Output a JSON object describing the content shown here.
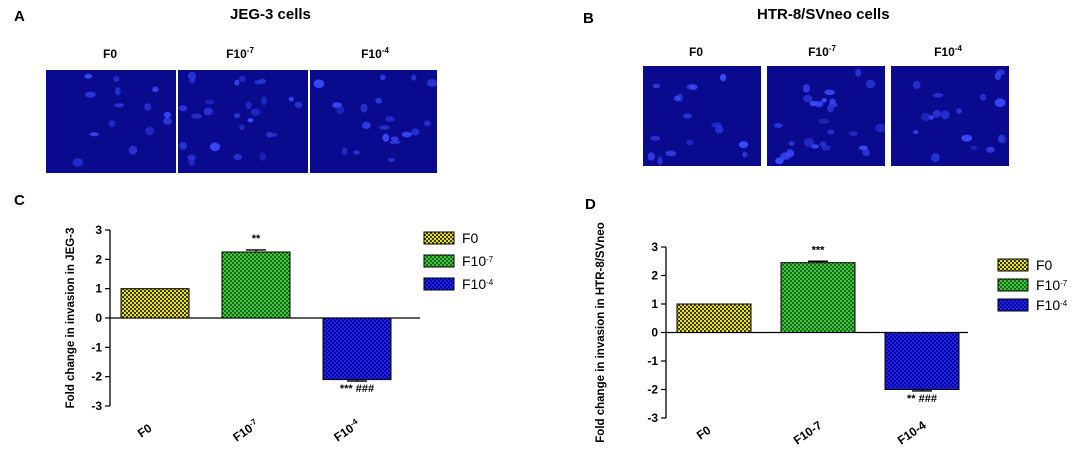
{
  "panels": {
    "A": {
      "letter": "A",
      "title": "JEG-3 cells",
      "columns": [
        {
          "base": "F0",
          "exp": ""
        },
        {
          "base": "F10",
          "exp": "-7"
        },
        {
          "base": "F10",
          "exp": "-4"
        }
      ],
      "image_color": "#0a0a8e"
    },
    "B": {
      "letter": "B",
      "title": "HTR-8/SVneo cells",
      "columns": [
        {
          "base": "F0",
          "exp": ""
        },
        {
          "base": "F10",
          "exp": "-7"
        },
        {
          "base": "F10",
          "exp": "-4"
        }
      ],
      "image_color": "#0a0a8e"
    },
    "C": {
      "letter": "C"
    },
    "D": {
      "letter": "D"
    }
  },
  "chart_data": [
    {
      "type": "bar",
      "panel": "C",
      "ylabel": "Fold change in invasion in JEG-3",
      "xlabel": "",
      "categories": [
        {
          "base": "F0",
          "exp": ""
        },
        {
          "base": "F10",
          "exp": "-7"
        },
        {
          "base": "F10",
          "exp": "-4"
        }
      ],
      "values": [
        1.0,
        2.25,
        -2.1
      ],
      "errors": [
        0.0,
        0.07,
        0.05
      ],
      "significance": [
        "",
        "**",
        "*** ###"
      ],
      "ylim": [
        -3,
        3
      ],
      "yticks": [
        -3,
        -2,
        -1,
        0,
        1,
        2,
        3
      ],
      "colors": [
        "#e8e030",
        "#3ec43e",
        "#1e1ef0"
      ],
      "legend": {
        "position": "right",
        "entries": [
          {
            "base": "F0",
            "exp": ""
          },
          {
            "base": "F10",
            "exp": "-7"
          },
          {
            "base": "F10",
            "exp": "-4"
          }
        ]
      }
    },
    {
      "type": "bar",
      "panel": "D",
      "ylabel": "Fold change in invasion in HTR-8/SVneo",
      "xlabel": "",
      "categories": [
        {
          "base": "F0",
          "exp": ""
        },
        {
          "base": "F10-7",
          "exp": ""
        },
        {
          "base": "F10-4",
          "exp": ""
        }
      ],
      "values": [
        1.0,
        2.45,
        -2.0
      ],
      "errors": [
        0.0,
        0.05,
        0.05
      ],
      "significance": [
        "",
        "***",
        "** ###"
      ],
      "ylim": [
        -3,
        3
      ],
      "yticks": [
        -3,
        -2,
        -1,
        0,
        1,
        2,
        3
      ],
      "colors": [
        "#e8e030",
        "#3ec43e",
        "#1e1ef0"
      ],
      "legend": {
        "position": "right",
        "entries": [
          {
            "base": "F0",
            "exp": ""
          },
          {
            "base": "F10",
            "exp": "-7"
          },
          {
            "base": "F10",
            "exp": "-4"
          }
        ]
      }
    }
  ]
}
